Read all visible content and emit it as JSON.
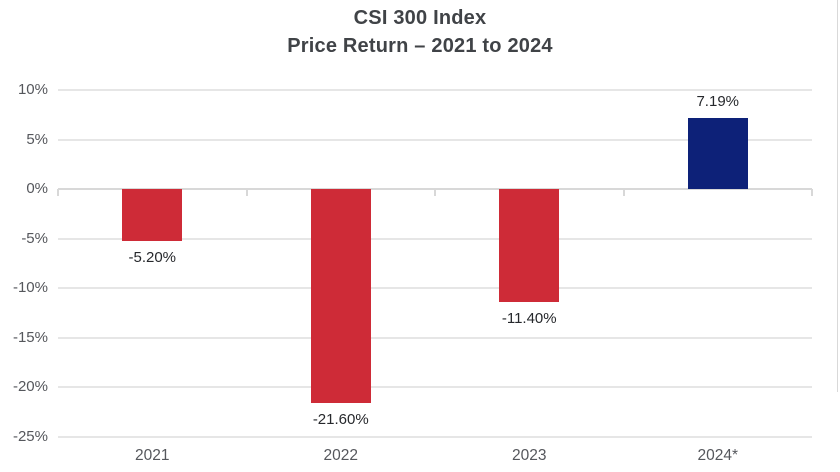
{
  "header": {
    "title_line1": "CSI 300 Index",
    "title_line2": "Price Return – 2021 to 2024"
  },
  "chart_data": {
    "type": "bar",
    "title": "CSI 300 Index",
    "subtitle": "Price Return – 2021 to 2024",
    "categories": [
      "2021",
      "2022",
      "2023",
      "2024*"
    ],
    "values": [
      -5.2,
      -21.6,
      -11.4,
      7.19
    ],
    "value_labels": [
      "-5.20%",
      "-21.60%",
      "-11.40%",
      "7.19%"
    ],
    "xlabel": "",
    "ylabel": "",
    "ylim": [
      -25,
      10
    ],
    "y_ticks": [
      10,
      5,
      0,
      -5,
      -10,
      -15,
      -20,
      -25
    ],
    "y_tick_labels": [
      "10%",
      "5%",
      "0%",
      "-5%",
      "-10%",
      "-15%",
      "-20%",
      "-25%"
    ],
    "grid": "horizontal",
    "legend": "none",
    "colors": {
      "negative_bar": "#ce2b37",
      "positive_bar": "#0d2178",
      "gridline": "#e6e6e6",
      "zero_line": "#d8d8d8",
      "title_text": "#404347",
      "axis_text": "#55575c",
      "label_text": "#26282c"
    }
  }
}
